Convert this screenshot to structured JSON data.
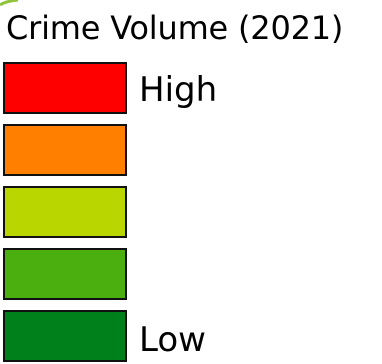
{
  "legend": {
    "title": "Crime Volume (2021)",
    "high_label": "High",
    "low_label": "Low",
    "classes": [
      {
        "level": "high",
        "color": "#ff0000"
      },
      {
        "level": "medium-high",
        "color": "#ff8000"
      },
      {
        "level": "medium",
        "color": "#b9d600"
      },
      {
        "level": "medium-low",
        "color": "#4caf10"
      },
      {
        "level": "low",
        "color": "#00801a"
      }
    ],
    "map_edge_color": "#8fc43a"
  }
}
